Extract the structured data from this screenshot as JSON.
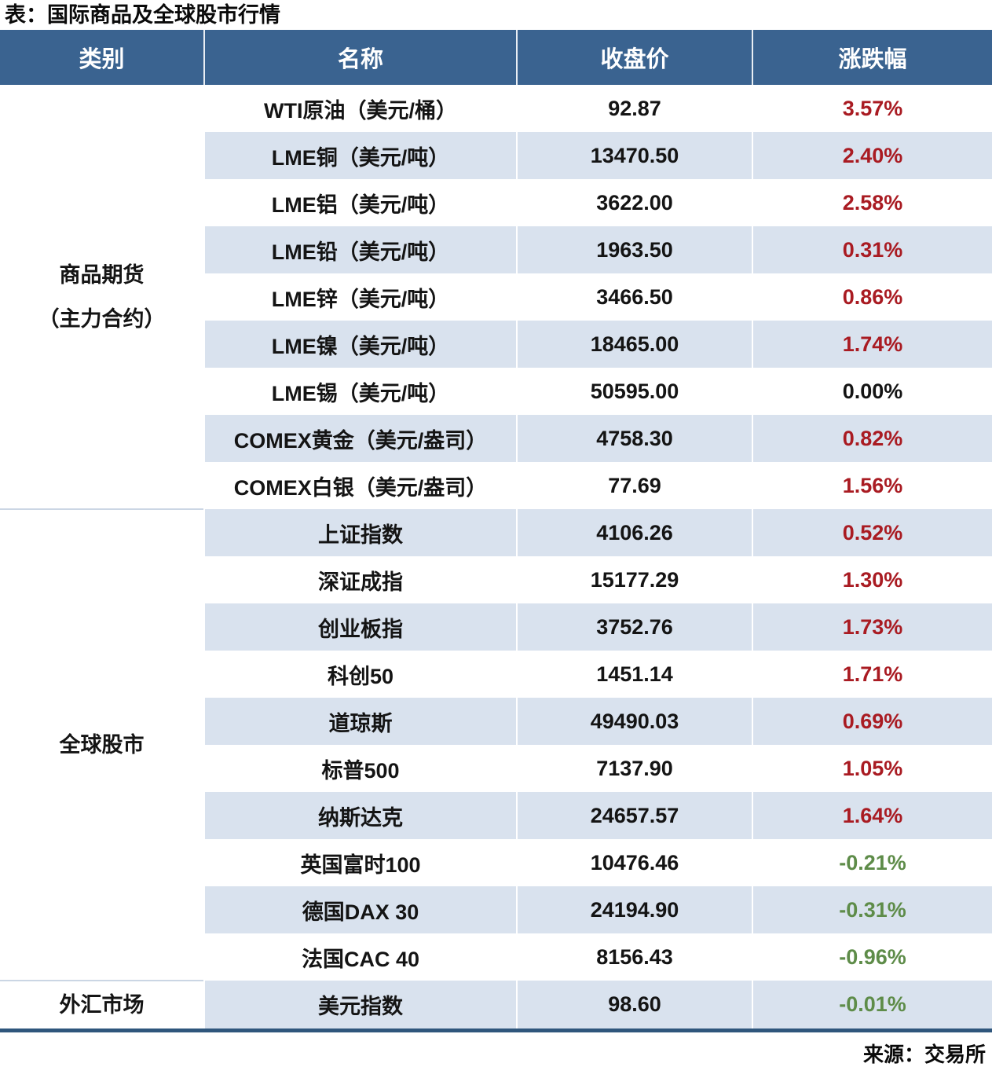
{
  "title": "表：国际商品及全球股市行情",
  "source": "来源：交易所",
  "colors": {
    "header_bg": "#3A6390",
    "row_alt_bg": "#D9E2EE",
    "positive_change": "#A91B22",
    "negative_change": "#5E8C49",
    "zero_change": "#141414",
    "table_bottom_border": "#2F567C",
    "group_separator": "#CBD6E4"
  },
  "table": {
    "headers": [
      "类别",
      "名称",
      "收盘价",
      "涨跌幅"
    ],
    "groups": [
      {
        "category": "商品期货\n（主力合约）",
        "rows": [
          {
            "name": "WTI原油（美元/桶）",
            "close": "92.87",
            "change": "3.57%",
            "direction": "up"
          },
          {
            "name": "LME铜（美元/吨）",
            "close": "13470.50",
            "change": "2.40%",
            "direction": "up"
          },
          {
            "name": "LME铝（美元/吨）",
            "close": "3622.00",
            "change": "2.58%",
            "direction": "up"
          },
          {
            "name": "LME铅（美元/吨）",
            "close": "1963.50",
            "change": "0.31%",
            "direction": "up"
          },
          {
            "name": "LME锌（美元/吨）",
            "close": "3466.50",
            "change": "0.86%",
            "direction": "up"
          },
          {
            "name": "LME镍（美元/吨）",
            "close": "18465.00",
            "change": "1.74%",
            "direction": "up"
          },
          {
            "name": "LME锡（美元/吨）",
            "close": "50595.00",
            "change": "0.00%",
            "direction": "flat"
          },
          {
            "name": "COMEX黄金（美元/盎司）",
            "close": "4758.30",
            "change": "0.82%",
            "direction": "up"
          },
          {
            "name": "COMEX白银（美元/盎司）",
            "close": "77.69",
            "change": "1.56%",
            "direction": "up"
          }
        ]
      },
      {
        "category": "全球股市",
        "rows": [
          {
            "name": "上证指数",
            "close": "4106.26",
            "change": "0.52%",
            "direction": "up"
          },
          {
            "name": "深证成指",
            "close": "15177.29",
            "change": "1.30%",
            "direction": "up"
          },
          {
            "name": "创业板指",
            "close": "3752.76",
            "change": "1.73%",
            "direction": "up"
          },
          {
            "name": "科创50",
            "close": "1451.14",
            "change": "1.71%",
            "direction": "up"
          },
          {
            "name": "道琼斯",
            "close": "49490.03",
            "change": "0.69%",
            "direction": "up"
          },
          {
            "name": "标普500",
            "close": "7137.90",
            "change": "1.05%",
            "direction": "up"
          },
          {
            "name": "纳斯达克",
            "close": "24657.57",
            "change": "1.64%",
            "direction": "up"
          },
          {
            "name": "英国富时100",
            "close": "10476.46",
            "change": "-0.21%",
            "direction": "down"
          },
          {
            "name": "德国DAX 30",
            "close": "24194.90",
            "change": "-0.31%",
            "direction": "down"
          },
          {
            "name": "法国CAC 40",
            "close": "8156.43",
            "change": "-0.96%",
            "direction": "down"
          }
        ]
      },
      {
        "category": "外汇市场",
        "rows": [
          {
            "name": "美元指数",
            "close": "98.60",
            "change": "-0.01%",
            "direction": "down"
          }
        ]
      }
    ]
  }
}
